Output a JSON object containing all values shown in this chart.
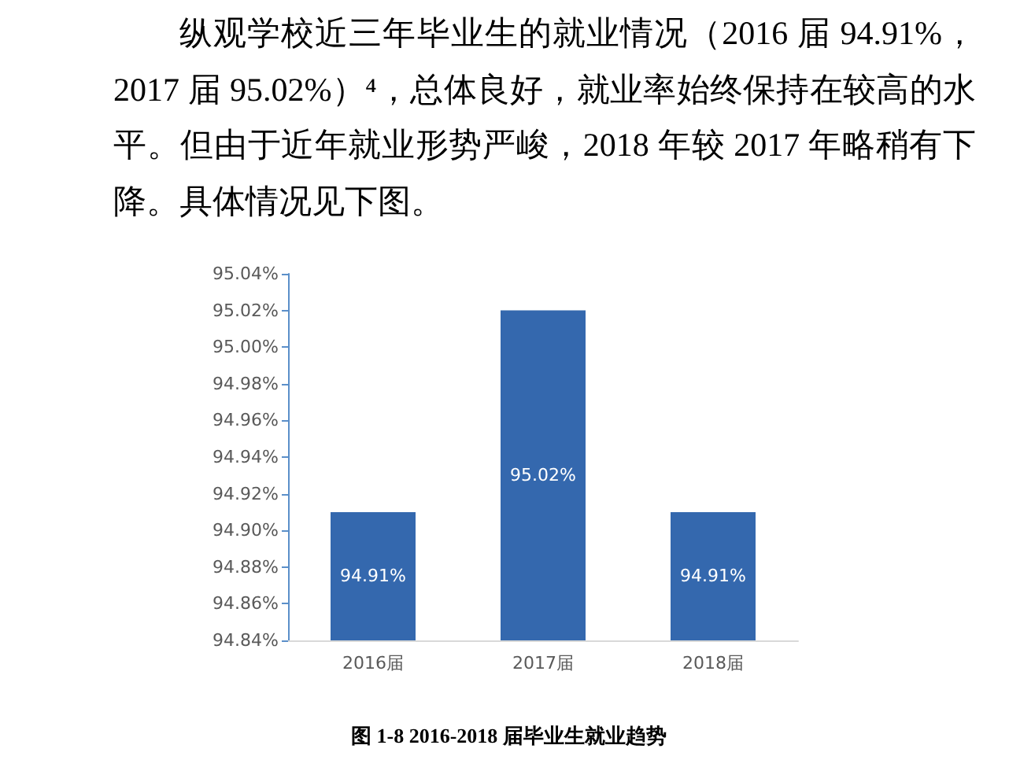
{
  "chart_data": {
    "type": "bar",
    "title": "图 1-8 2016-2018 届毕业生就业趋势",
    "annotations": [
      "纵观学校近三年毕业生的就业情况（2016 届 94.91%，2017 届 95.02%）⁴，总体良好，就业率始终保持在较高的水平。但由于近年就业形势严峻，2018 年较 2017 年略稍有下降。具体情况见下图。"
    ],
    "categories": [
      "2016届",
      "2017届",
      "2018届"
    ],
    "values": [
      94.91,
      95.02,
      94.91
    ],
    "color": "#3468ae",
    "value_labels": [
      "94.91%",
      "95.02%",
      "94.91%"
    ],
    "ylim": [
      94.84,
      95.04
    ],
    "yticks": [
      {
        "value": 94.84,
        "label": "94.84%"
      },
      {
        "value": 94.86,
        "label": "94.86%"
      },
      {
        "value": 94.88,
        "label": "94.88%"
      },
      {
        "value": 94.9,
        "label": "94.90%"
      },
      {
        "value": 94.92,
        "label": "94.92%"
      },
      {
        "value": 94.94,
        "label": "94.94%"
      },
      {
        "value": 94.96,
        "label": "94.96%"
      },
      {
        "value": 94.98,
        "label": "94.98%"
      },
      {
        "value": 95.0,
        "label": "95.00%"
      },
      {
        "value": 95.02,
        "label": "95.02%"
      },
      {
        "value": 95.04,
        "label": "95.04%"
      }
    ],
    "grid": false
  }
}
